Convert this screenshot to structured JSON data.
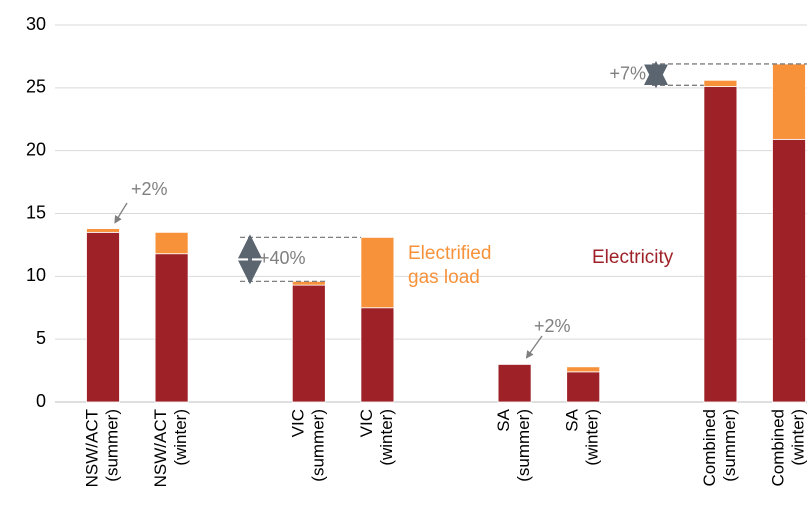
{
  "chart_data": {
    "type": "stacked-bar",
    "categories": [
      [
        "NSW/ACT",
        "(summer)"
      ],
      [
        "NSW/ACT",
        "(winter)"
      ],
      null,
      [
        "VIC",
        "(summer)"
      ],
      [
        "VIC",
        "(winter)"
      ],
      null,
      [
        "SA",
        "(summer)"
      ],
      [
        "SA",
        "(winter)"
      ],
      null,
      [
        "Combined",
        "(summer)"
      ],
      [
        "Combined",
        "(winter)"
      ]
    ],
    "series": [
      {
        "name": "Electricity",
        "color": "#9e2127",
        "values": [
          13.5,
          11.8,
          null,
          9.3,
          7.5,
          null,
          3.0,
          2.4,
          null,
          25.1,
          20.9
        ]
      },
      {
        "name": "Electrified gas load",
        "color": "#f7923a",
        "values": [
          0.3,
          1.7,
          null,
          0.3,
          5.6,
          null,
          0.05,
          0.4,
          null,
          0.5,
          6.0
        ]
      }
    ],
    "ylim": [
      0,
      30
    ],
    "yticks": [
      0,
      5,
      10,
      15,
      20,
      25,
      30
    ],
    "grid": true,
    "annotations": [
      "+2%",
      "+40%",
      "+2%",
      "+7%"
    ]
  }
}
